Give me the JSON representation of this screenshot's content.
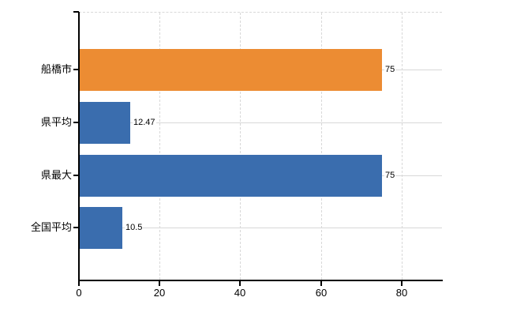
{
  "chart_data": {
    "type": "bar",
    "orientation": "horizontal",
    "title": "",
    "xlabel": "",
    "ylabel": "",
    "categories": [
      "船橋市",
      "県平均",
      "県最大",
      "全国平均"
    ],
    "values": [
      75,
      12.47,
      75,
      10.5
    ],
    "value_labels": [
      "75",
      "12.47",
      "75",
      "10.5"
    ],
    "bar_colors": [
      "#ec8c33",
      "#3a6dae",
      "#3a6dae",
      "#3a6dae"
    ],
    "highlight_color": "#ec8c33",
    "default_bar_color": "#3a6dae",
    "xlim": [
      0,
      90
    ],
    "x_tick_labels": [
      "0",
      "20",
      "40",
      "60",
      "80"
    ],
    "x_tick_values": [
      0,
      20,
      40,
      60,
      80
    ],
    "grid": true,
    "gridline_color": "#d8d8d8",
    "axis_color": "#000000",
    "text_color": "#000000",
    "background_color": "#ffffff",
    "legend": null
  }
}
